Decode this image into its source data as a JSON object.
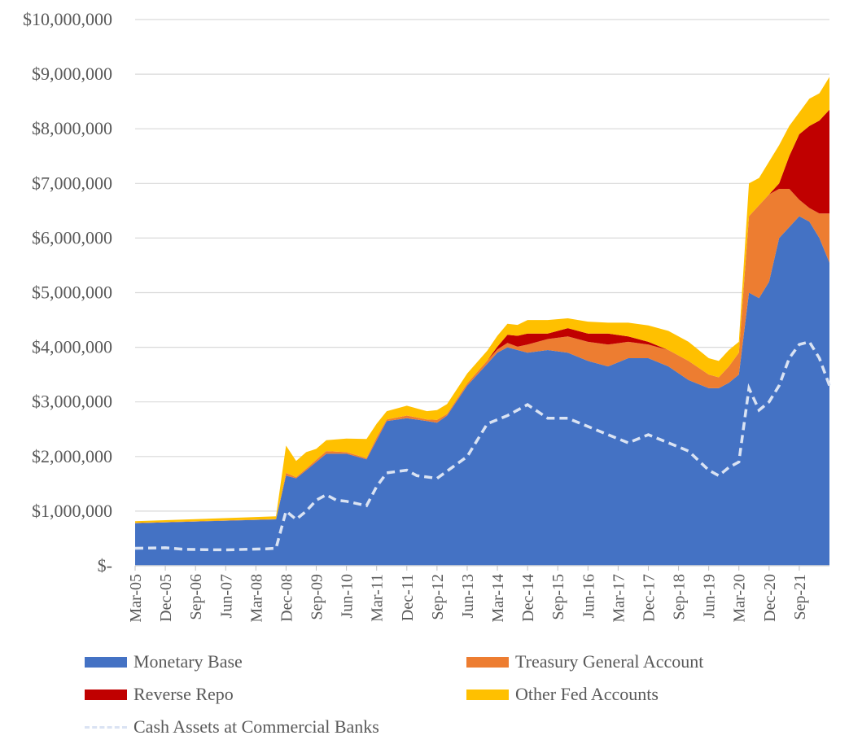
{
  "chart_data": {
    "type": "area",
    "stacked": true,
    "ylim": [
      0,
      10000000
    ],
    "y_ticks": [
      "$-",
      "$1,000,000",
      "$2,000,000",
      "$3,000,000",
      "$4,000,000",
      "$5,000,000",
      "$6,000,000",
      "$7,000,000",
      "$8,000,000",
      "$9,000,000",
      "$10,000,000"
    ],
    "x_tick_labels": [
      "Mar-05",
      "Dec-05",
      "Sep-06",
      "Jun-07",
      "Mar-08",
      "Dec-08",
      "Sep-09",
      "Jun-10",
      "Mar-11",
      "Dec-11",
      "Sep-12",
      "Jun-13",
      "Mar-14",
      "Dec-14",
      "Sep-15",
      "Jun-16",
      "Mar-17",
      "Dec-17",
      "Sep-18",
      "Jun-19",
      "Mar-20",
      "Dec-20",
      "Sep-21"
    ],
    "x_range": [
      "2005-03",
      "2022-06"
    ],
    "grid": "horizontal",
    "legend_position": "bottom",
    "x": [
      "2005-03",
      "2008-09",
      "2008-12",
      "2009-03",
      "2009-06",
      "2009-09",
      "2009-12",
      "2010-06",
      "2010-12",
      "2011-03",
      "2011-06",
      "2011-12",
      "2012-06",
      "2012-09",
      "2012-12",
      "2013-06",
      "2013-12",
      "2014-03",
      "2014-06",
      "2014-09",
      "2014-12",
      "2015-06",
      "2015-12",
      "2016-06",
      "2016-12",
      "2017-06",
      "2017-12",
      "2018-06",
      "2018-12",
      "2019-06",
      "2019-09",
      "2019-12",
      "2020-03",
      "2020-06",
      "2020-09",
      "2020-12",
      "2021-03",
      "2021-06",
      "2021-09",
      "2021-12",
      "2022-03",
      "2022-06"
    ],
    "series": [
      {
        "name": "Monetary Base",
        "color": "#4472c4",
        "values": [
          780000,
          850000,
          1650000,
          1600000,
          1750000,
          1900000,
          2050000,
          2050000,
          1950000,
          2300000,
          2650000,
          2700000,
          2650000,
          2620000,
          2750000,
          3300000,
          3700000,
          3900000,
          4000000,
          3950000,
          3900000,
          3950000,
          3900000,
          3750000,
          3650000,
          3800000,
          3800000,
          3650000,
          3400000,
          3250000,
          3250000,
          3350000,
          3500000,
          5000000,
          4900000,
          5200000,
          6000000,
          6200000,
          6400000,
          6300000,
          6000000,
          5550000
        ]
      },
      {
        "name": "Treasury General Account",
        "color": "#ed7d31",
        "values": [
          5000,
          5000,
          50000,
          20000,
          30000,
          40000,
          50000,
          30000,
          20000,
          50000,
          30000,
          50000,
          30000,
          50000,
          30000,
          40000,
          60000,
          60000,
          80000,
          60000,
          150000,
          200000,
          300000,
          350000,
          400000,
          300000,
          250000,
          300000,
          350000,
          250000,
          200000,
          300000,
          400000,
          1400000,
          1700000,
          1600000,
          900000,
          700000,
          300000,
          250000,
          450000,
          900000
        ]
      },
      {
        "name": "Reverse Repo",
        "color": "#c00000",
        "values": [
          0,
          0,
          0,
          0,
          0,
          0,
          0,
          0,
          0,
          0,
          0,
          0,
          0,
          0,
          0,
          0,
          0,
          50000,
          150000,
          200000,
          200000,
          100000,
          150000,
          150000,
          200000,
          100000,
          50000,
          0,
          0,
          0,
          0,
          0,
          0,
          0,
          0,
          0,
          100000,
          600000,
          1200000,
          1500000,
          1700000,
          1900000
        ]
      },
      {
        "name": "Other Fed Accounts",
        "color": "#ffc000",
        "values": [
          30000,
          50000,
          500000,
          300000,
          300000,
          200000,
          200000,
          250000,
          350000,
          250000,
          150000,
          180000,
          150000,
          180000,
          180000,
          180000,
          180000,
          200000,
          200000,
          200000,
          250000,
          250000,
          180000,
          220000,
          200000,
          250000,
          300000,
          350000,
          350000,
          300000,
          300000,
          300000,
          200000,
          600000,
          500000,
          600000,
          700000,
          550000,
          400000,
          500000,
          500000,
          600000
        ]
      }
    ],
    "line": {
      "name": "Cash Assets at Commercial Banks",
      "color": "#dae3f3",
      "style": "dashed",
      "x": [
        "2005-03",
        "2005-12",
        "2006-06",
        "2007-06",
        "2008-06",
        "2008-09",
        "2008-12",
        "2009-03",
        "2009-06",
        "2009-09",
        "2009-12",
        "2010-03",
        "2010-06",
        "2010-12",
        "2011-03",
        "2011-06",
        "2011-12",
        "2012-03",
        "2012-09",
        "2013-06",
        "2013-12",
        "2014-06",
        "2014-12",
        "2015-06",
        "2015-12",
        "2016-06",
        "2016-12",
        "2017-06",
        "2017-12",
        "2018-06",
        "2018-12",
        "2019-06",
        "2019-09",
        "2019-12",
        "2020-03",
        "2020-06",
        "2020-09",
        "2020-12",
        "2021-03",
        "2021-06",
        "2021-09",
        "2021-12",
        "2022-03",
        "2022-06"
      ],
      "values": [
        320000,
        330000,
        300000,
        290000,
        310000,
        320000,
        1000000,
        850000,
        1000000,
        1200000,
        1300000,
        1200000,
        1180000,
        1100000,
        1450000,
        1700000,
        1750000,
        1650000,
        1600000,
        2000000,
        2600000,
        2750000,
        2950000,
        2700000,
        2700000,
        2550000,
        2400000,
        2250000,
        2400000,
        2250000,
        2100000,
        1750000,
        1650000,
        1800000,
        1900000,
        3250000,
        2850000,
        3000000,
        3300000,
        3800000,
        4050000,
        4100000,
        3800000,
        3300000
      ]
    }
  }
}
